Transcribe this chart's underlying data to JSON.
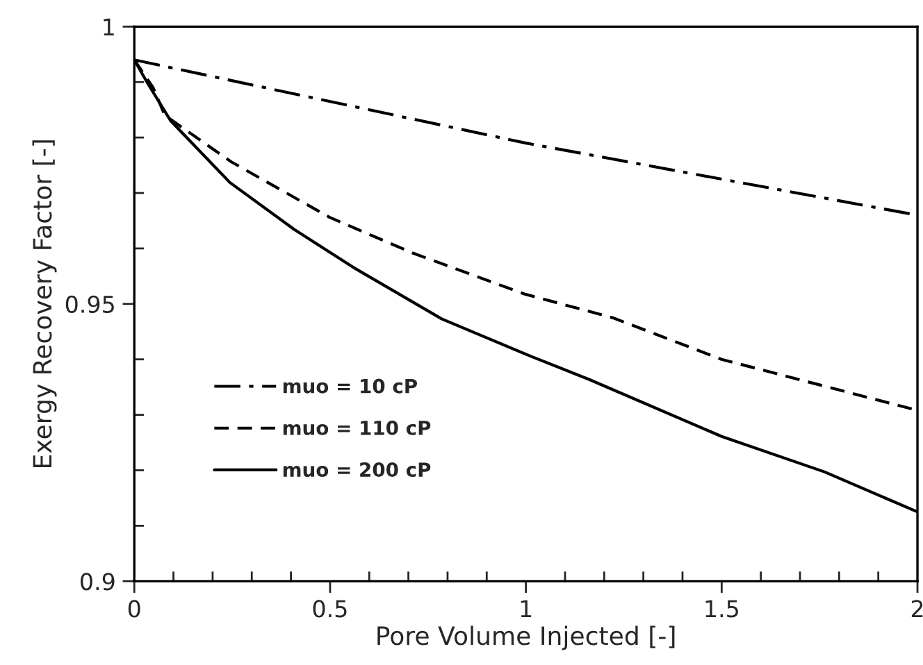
{
  "chart_data": {
    "type": "line",
    "xlabel": "Pore Volume Injected [-]",
    "ylabel": "Exergy Recovery Factor [-]",
    "xlim": [
      0,
      2
    ],
    "ylim": [
      0.9,
      1
    ],
    "xticks": [
      0,
      0.5,
      1,
      1.5,
      2,
      {
        "value": 0.1,
        "label": null
      },
      {
        "value": 0.2,
        "label": null
      },
      {
        "value": 0.3,
        "label": null
      },
      {
        "value": 0.4,
        "label": null
      },
      {
        "value": 0.6,
        "label": null
      },
      {
        "value": 0.7,
        "label": null
      },
      {
        "value": 0.8,
        "label": null
      },
      {
        "value": 0.9,
        "label": null
      },
      {
        "value": 1.1,
        "label": null
      },
      {
        "value": 1.2,
        "label": null
      },
      {
        "value": 1.3,
        "label": null
      },
      {
        "value": 1.4,
        "label": null
      },
      {
        "value": 1.6,
        "label": null
      },
      {
        "value": 1.7,
        "label": null
      },
      {
        "value": 1.8,
        "label": null
      },
      {
        "value": 1.9,
        "label": null
      }
    ],
    "yticks": [
      0.9,
      0.95,
      1,
      {
        "value": 0.91,
        "label": null
      },
      {
        "value": 0.92,
        "label": null
      },
      {
        "value": 0.93,
        "label": null
      },
      {
        "value": 0.94,
        "label": null
      },
      {
        "value": 0.96,
        "label": null
      },
      {
        "value": 0.97,
        "label": null
      },
      {
        "value": 0.98,
        "label": null
      },
      {
        "value": 0.99,
        "label": null
      }
    ],
    "grid": false,
    "legend": "bottom left",
    "marker": "none",
    "series": [
      {
        "name": "muo = 10 cP",
        "color": "#000000",
        "line_style": "dashdot",
        "x": [
          0,
          1,
          2
        ],
        "values": [
          0.994,
          0.979,
          0.966
        ]
      },
      {
        "name": "muo = 110 cP",
        "color": "#000000",
        "line_style": "dashed",
        "x": [
          0,
          0.048,
          0.078,
          0.248,
          0.499,
          0.71,
          0.996,
          1.222,
          1.5,
          2
        ],
        "values": [
          0.994,
          0.989,
          0.984,
          0.9756,
          0.9656,
          0.9592,
          0.9518,
          0.9475,
          0.94,
          0.9308
        ]
      },
      {
        "name": "muo = 200 cP",
        "color": "#000000",
        "line_style": "solid",
        "x": [
          0,
          0.033,
          0.093,
          0.244,
          0.409,
          0.559,
          0.785,
          1.011,
          1.161,
          1.5,
          1.763,
          2
        ],
        "values": [
          0.994,
          0.9899,
          0.983,
          0.9719,
          0.9634,
          0.9566,
          0.9473,
          0.9406,
          0.9364,
          0.9261,
          0.9197,
          0.9125
        ]
      }
    ]
  }
}
